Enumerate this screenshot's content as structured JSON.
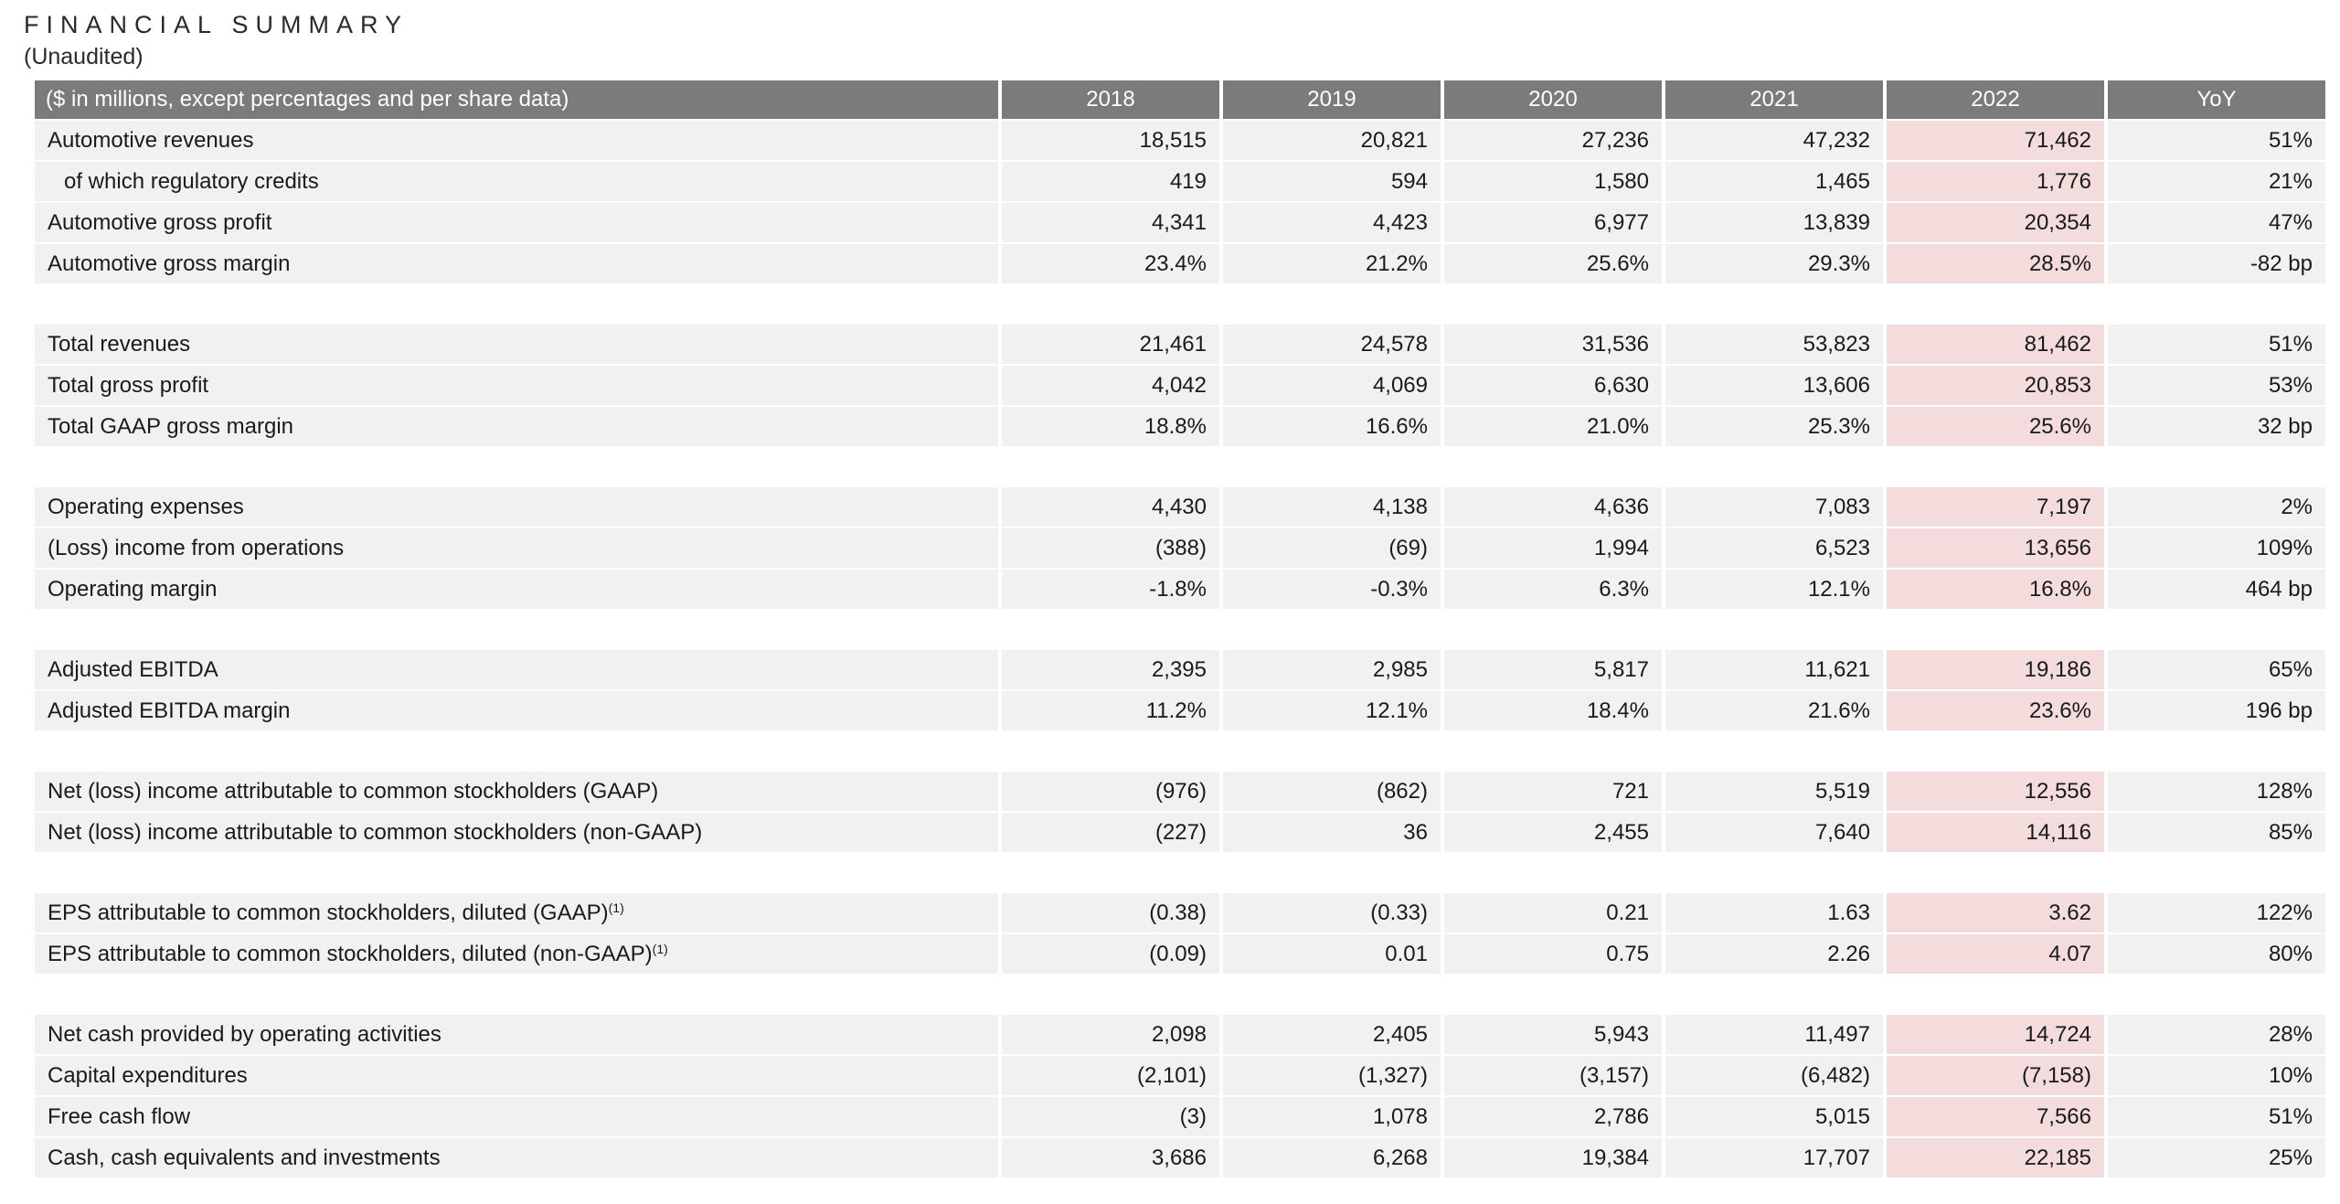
{
  "title": "FINANCIAL SUMMARY",
  "subtitle": "(Unaudited)",
  "header": {
    "label": "($ in millions, except percentages and per share data)",
    "columns": [
      "2018",
      "2019",
      "2020",
      "2021",
      "2022",
      "YoY"
    ]
  },
  "highlight_color": "#f3dcdb",
  "groups": [
    {
      "rows": [
        {
          "label": "Automotive revenues",
          "values": [
            "18,515",
            "20,821",
            "27,236",
            "47,232",
            "71,462",
            "51%"
          ]
        },
        {
          "label": "of which regulatory credits",
          "values": [
            "419",
            "594",
            "1,580",
            "1,465",
            "1,776",
            "21%"
          ]
        },
        {
          "label": "Automotive gross profit",
          "values": [
            "4,341",
            "4,423",
            "6,977",
            "13,839",
            "20,354",
            "47%"
          ]
        },
        {
          "label": "Automotive gross margin",
          "values": [
            "23.4%",
            "21.2%",
            "25.6%",
            "29.3%",
            "28.5%",
            "-82 bp"
          ]
        }
      ]
    },
    {
      "rows": [
        {
          "label": "Total revenues",
          "values": [
            "21,461",
            "24,578",
            "31,536",
            "53,823",
            "81,462",
            "51%"
          ]
        },
        {
          "label": "Total gross profit",
          "values": [
            "4,042",
            "4,069",
            "6,630",
            "13,606",
            "20,853",
            "53%"
          ]
        },
        {
          "label": "Total GAAP gross margin",
          "values": [
            "18.8%",
            "16.6%",
            "21.0%",
            "25.3%",
            "25.6%",
            "32 bp"
          ]
        }
      ]
    },
    {
      "rows": [
        {
          "label": "Operating expenses",
          "values": [
            "4,430",
            "4,138",
            "4,636",
            "7,083",
            "7,197",
            "2%"
          ]
        },
        {
          "label": "(Loss) income from operations",
          "values": [
            "(388)",
            "(69)",
            "1,994",
            "6,523",
            "13,656",
            "109%"
          ]
        },
        {
          "label": "Operating margin",
          "values": [
            "-1.8%",
            "-0.3%",
            "6.3%",
            "12.1%",
            "16.8%",
            "464 bp"
          ]
        }
      ]
    },
    {
      "rows": [
        {
          "label": "Adjusted EBITDA",
          "values": [
            "2,395",
            "2,985",
            "5,817",
            "11,621",
            "19,186",
            "65%"
          ]
        },
        {
          "label": "Adjusted EBITDA margin",
          "values": [
            "11.2%",
            "12.1%",
            "18.4%",
            "21.6%",
            "23.6%",
            "196 bp"
          ]
        }
      ]
    },
    {
      "rows": [
        {
          "label": "Net (loss) income attributable to common stockholders (GAAP)",
          "values": [
            "(976)",
            "(862)",
            "721",
            "5,519",
            "12,556",
            "128%"
          ]
        },
        {
          "label": "Net (loss) income attributable to common stockholders (non-GAAP)",
          "values": [
            "(227)",
            "36",
            "2,455",
            "7,640",
            "14,116",
            "85%"
          ]
        }
      ]
    },
    {
      "rows": [
        {
          "label": "EPS attributable to common stockholders, diluted (GAAP)",
          "sup": "(1)",
          "values": [
            "(0.38)",
            "(0.33)",
            "0.21",
            "1.63",
            "3.62",
            "122%"
          ]
        },
        {
          "label": "EPS attributable to common stockholders, diluted (non-GAAP)",
          "sup": "(1)",
          "values": [
            "(0.09)",
            "0.01",
            "0.75",
            "2.26",
            "4.07",
            "80%"
          ]
        }
      ]
    },
    {
      "rows": [
        {
          "label": "Net cash provided by operating activities",
          "values": [
            "2,098",
            "2,405",
            "5,943",
            "11,497",
            "14,724",
            "28%"
          ]
        },
        {
          "label": "Capital expenditures",
          "values": [
            "(2,101)",
            "(1,327)",
            "(3,157)",
            "(6,482)",
            "(7,158)",
            "10%"
          ]
        },
        {
          "label": "Free cash flow",
          "values": [
            "(3)",
            "1,078",
            "2,786",
            "5,015",
            "7,566",
            "51%"
          ]
        },
        {
          "label": "Cash, cash equivalents and investments",
          "values": [
            "3,686",
            "6,268",
            "19,384",
            "17,707",
            "22,185",
            "25%"
          ]
        }
      ]
    }
  ]
}
